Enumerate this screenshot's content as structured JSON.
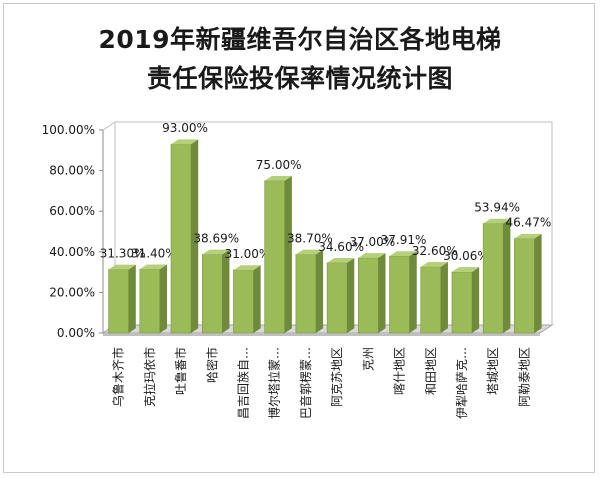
{
  "chart_data": {
    "type": "bar",
    "title_line1": "2019年新疆维吾尔自治区各地电梯",
    "title_line2": "责任保险投保率情况统计图",
    "categories": [
      "乌鲁木齐市",
      "克拉玛依市",
      "吐鲁番市",
      "哈密市",
      "昌吉回族自…",
      "博尔塔拉蒙…",
      "巴音郭楞蒙…",
      "阿克苏地区",
      "克州",
      "喀什地区",
      "和田地区",
      "伊犁哈萨克…",
      "塔城地区",
      "阿勒泰地区"
    ],
    "values": [
      31.3,
      31.4,
      93.0,
      38.69,
      31.0,
      75.0,
      38.7,
      34.6,
      37.0,
      37.91,
      32.6,
      30.06,
      53.94,
      46.47
    ],
    "data_labels": [
      "31.30%",
      "31.40%",
      "93.00%",
      "38.69%",
      "31.00%",
      "75.00%",
      "38.70%",
      "34.60%",
      "37.00%",
      "37.91%",
      "32.60%",
      "30.06%",
      "53.94%",
      "46.47%"
    ],
    "ylim": [
      0,
      100
    ],
    "yticks": [
      "0.00%",
      "20.00%",
      "40.00%",
      "60.00%",
      "80.00%",
      "100.00%"
    ],
    "grid": false,
    "legend": "none",
    "colors": {
      "bar_front": "#9bbb59",
      "bar_side": "#6f8a3a",
      "bar_top": "#b5d07a",
      "wall": "#ffffff",
      "floor": "#d9d9d9"
    }
  }
}
